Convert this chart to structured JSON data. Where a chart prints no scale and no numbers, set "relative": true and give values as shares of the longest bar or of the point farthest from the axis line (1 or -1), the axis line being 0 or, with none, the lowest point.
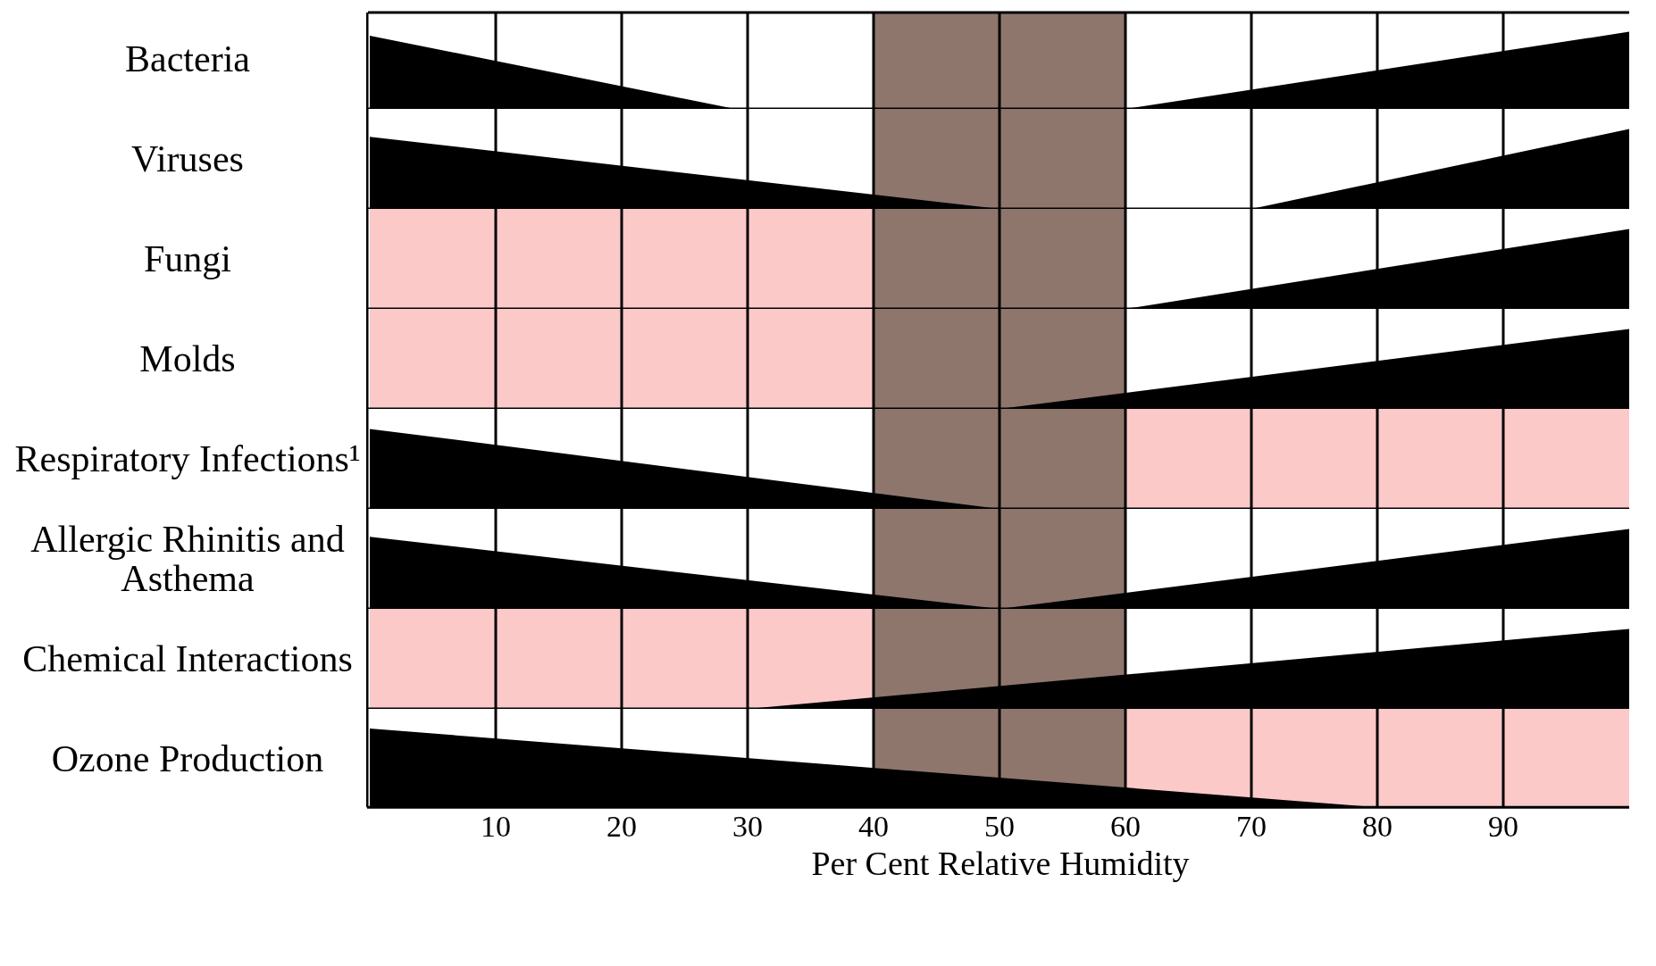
{
  "chart_data": [
    {
      "type": "area",
      "relative": true,
      "ylabel": "Bacteria",
      "xlim": [
        0,
        100
      ],
      "xticks": [
        10,
        20,
        30,
        40,
        50,
        60,
        70,
        80,
        90
      ],
      "grid": "x",
      "tick_labels": false,
      "legend": false,
      "series": [
        {
          "color": "#000000",
          "x": [
            0,
            29,
            60,
            100
          ],
          "values": [
            0.95,
            0,
            0,
            1
          ]
        }
      ],
      "bands": [
        {
          "axis": "x",
          "from": 40,
          "to": 60,
          "color": "#8e766d"
        }
      ]
    },
    {
      "type": "area",
      "relative": true,
      "ylabel": "Viruses",
      "xlim": [
        0,
        100
      ],
      "xticks": [
        10,
        20,
        30,
        40,
        50,
        60,
        70,
        80,
        90
      ],
      "grid": "x",
      "tick_labels": false,
      "legend": false,
      "series": [
        {
          "color": "#000000",
          "x": [
            0,
            50,
            70,
            100
          ],
          "values": [
            0.9,
            0,
            0,
            1
          ]
        }
      ],
      "bands": [
        {
          "axis": "x",
          "from": 40,
          "to": 60,
          "color": "#8e766d"
        }
      ]
    },
    {
      "type": "area",
      "relative": true,
      "ylabel": "Fungi",
      "xlim": [
        0,
        100
      ],
      "xticks": [
        10,
        20,
        30,
        40,
        50,
        60,
        70,
        80,
        90
      ],
      "grid": "x",
      "tick_labels": false,
      "legend": false,
      "series": [
        {
          "color": "#000000",
          "x": [
            40,
            60,
            100
          ],
          "values": [
            0,
            0,
            1
          ]
        }
      ],
      "bands": [
        {
          "axis": "x",
          "from": 0,
          "to": 40,
          "color": "#fcc9c9"
        },
        {
          "axis": "x",
          "from": 40,
          "to": 60,
          "color": "#8e766d"
        }
      ]
    },
    {
      "type": "area",
      "relative": true,
      "ylabel": "Molds",
      "xlim": [
        0,
        100
      ],
      "xticks": [
        10,
        20,
        30,
        40,
        50,
        60,
        70,
        80,
        90
      ],
      "grid": "x",
      "tick_labels": false,
      "legend": false,
      "series": [
        {
          "color": "#000000",
          "x": [
            40,
            50,
            100
          ],
          "values": [
            0,
            0,
            1
          ]
        }
      ],
      "bands": [
        {
          "axis": "x",
          "from": 0,
          "to": 40,
          "color": "#fcc9c9"
        },
        {
          "axis": "x",
          "from": 40,
          "to": 60,
          "color": "#8e766d"
        }
      ]
    },
    {
      "type": "area",
      "relative": true,
      "ylabel": "Respiratory Infections¹",
      "xlim": [
        0,
        100
      ],
      "xticks": [
        10,
        20,
        30,
        40,
        50,
        60,
        70,
        80,
        90
      ],
      "grid": "x",
      "tick_labels": false,
      "legend": false,
      "series": [
        {
          "color": "#000000",
          "x": [
            0,
            50,
            60
          ],
          "values": [
            1,
            0,
            0
          ]
        }
      ],
      "bands": [
        {
          "axis": "x",
          "from": 60,
          "to": 100,
          "color": "#fcc9c9"
        },
        {
          "axis": "x",
          "from": 40,
          "to": 60,
          "color": "#8e766d"
        }
      ]
    },
    {
      "type": "area",
      "relative": true,
      "ylabel": "Allergic Rhinitis and Asthema",
      "xlim": [
        0,
        100
      ],
      "xticks": [
        10,
        20,
        30,
        40,
        50,
        60,
        70,
        80,
        90
      ],
      "grid": "x",
      "tick_labels": false,
      "legend": false,
      "series": [
        {
          "color": "#000000",
          "x": [
            0,
            50,
            100
          ],
          "values": [
            0.9,
            0,
            1
          ]
        }
      ],
      "bands": [
        {
          "axis": "x",
          "from": 40,
          "to": 60,
          "color": "#8e766d"
        }
      ]
    },
    {
      "type": "area",
      "relative": true,
      "ylabel": "Chemical Interactions",
      "xlim": [
        0,
        100
      ],
      "xticks": [
        10,
        20,
        30,
        40,
        50,
        60,
        70,
        80,
        90
      ],
      "grid": "x",
      "tick_labels": false,
      "legend": false,
      "series": [
        {
          "color": "#000000",
          "x": [
            30,
            100
          ],
          "values": [
            0,
            1
          ]
        }
      ],
      "bands": [
        {
          "axis": "x",
          "from": 0,
          "to": 40,
          "color": "#fcc9c9"
        },
        {
          "axis": "x",
          "from": 40,
          "to": 60,
          "color": "#8e766d"
        }
      ]
    },
    {
      "type": "area",
      "relative": true,
      "ylabel": "Ozone Production",
      "xlabel": "Per Cent Relative Humidity",
      "xlim": [
        0,
        100
      ],
      "xticks": [
        10,
        20,
        30,
        40,
        50,
        60,
        70,
        80,
        90
      ],
      "grid": "x",
      "tick_labels": "x",
      "legend": false,
      "series": [
        {
          "color": "#000000",
          "x": [
            0,
            80,
            100
          ],
          "values": [
            1,
            0,
            0
          ]
        }
      ],
      "bands": [
        {
          "axis": "x",
          "from": 60,
          "to": 100,
          "color": "#fcc9c9"
        },
        {
          "axis": "x",
          "from": 40,
          "to": 60,
          "color": "#8e766d"
        }
      ]
    }
  ]
}
